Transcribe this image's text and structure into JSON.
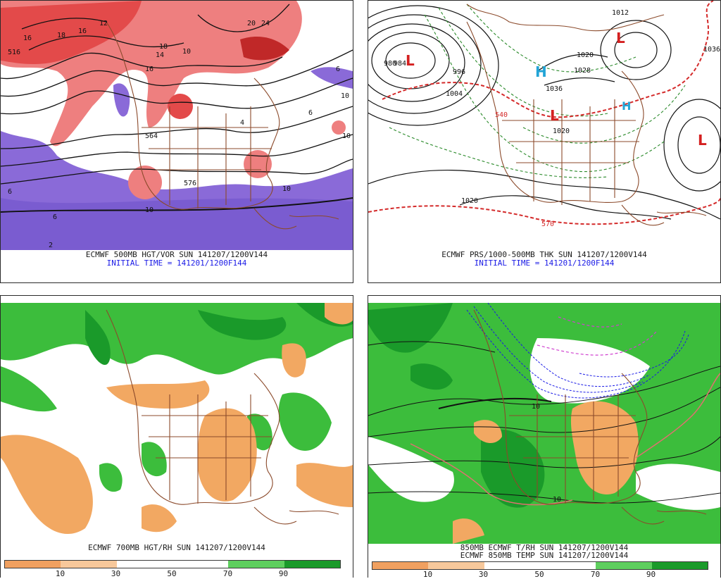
{
  "panels": {
    "tl": {
      "caption": "ECMWF 500MB HGT/VOR SUN 141207/1200V144",
      "initial": "INITIAL TIME = 141201/1200F144",
      "labels": [
        "16",
        "18",
        "16",
        "12",
        "10",
        "14",
        "16",
        "18",
        "20",
        "24",
        "10",
        "6",
        "10",
        "6",
        "4",
        "10",
        "6",
        "2",
        "10",
        "6",
        "564",
        "576",
        "516"
      ]
    },
    "tr": {
      "caption": "ECMWF PRS/1000-500MB THK SUN 141207/1200V144",
      "initial": "INITIAL TIME = 141201/1200F144",
      "labels": [
        "1012",
        "1036",
        "1020",
        "1028",
        "1036",
        "1020",
        "1020",
        "1004",
        "996",
        "540",
        "570",
        "980",
        "984"
      ],
      "highs": [
        "H",
        "H"
      ],
      "lows": [
        "L",
        "L",
        "L",
        "L"
      ]
    },
    "bl": {
      "caption": "ECMWF 700MB HGT/RH SUN 141207/1200V144"
    },
    "br": {
      "caption_line1": "850MB ECMWF T/RH SUN 141207/1200V144",
      "caption_line2": "ECMWF 850MB TEMP SUN 141207/1200V144",
      "labels": [
        "10",
        "10"
      ]
    }
  },
  "rh_scale": {
    "ticks": [
      "10",
      "30",
      "50",
      "70",
      "90"
    ],
    "colors": [
      "#f0a060",
      "#f7c89b",
      "#ffffff",
      "#ffffff",
      "#5ecf5e",
      "#1a9a2a"
    ]
  },
  "colors": {
    "vort_pos": "#e04848",
    "vort_neg": "#8a6ad8",
    "rh_dry": "#f2a862",
    "rh_moist": "#3cbd3c",
    "rh_wet": "#1a9a2a",
    "borders": "#8b4a2b",
    "thickness": "#d42a2a",
    "isobar": "#111111",
    "high": "#22a4d6",
    "low": "#d42020"
  }
}
